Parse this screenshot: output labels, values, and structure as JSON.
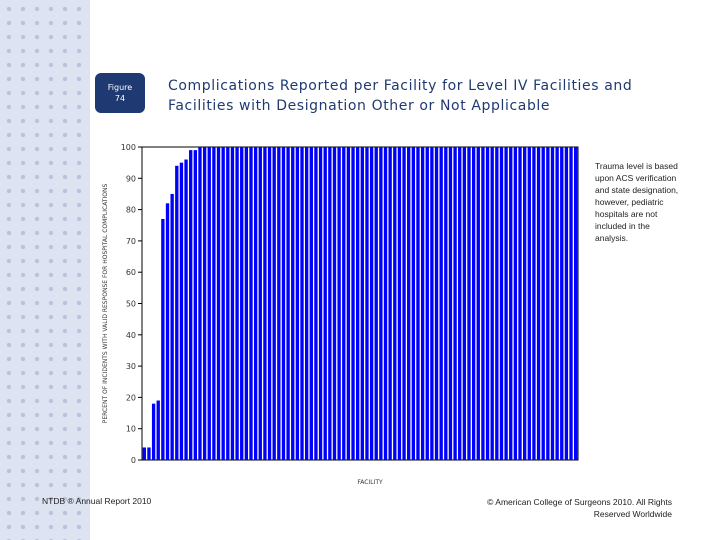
{
  "figure": {
    "label": "Figure",
    "number": "74"
  },
  "title": "Complications Reported per Facility for Level IV Facilities and Facilities with Designation Other or Not Applicable",
  "note": "Trauma level is based upon ACS verification and state designation, however, pediatric hospitals are not included in the analysis.",
  "footer": {
    "left": "NTDB ® Annual Report 2010",
    "right": "© American College of Surgeons 2010. All Rights Reserved Worldwide"
  },
  "colors": {
    "bar": "#0000ff",
    "sidebar": "#dde3f0",
    "badge": "#1f3a72",
    "title": "#1f3a72"
  },
  "chart_data": {
    "type": "bar",
    "xlabel": "FACILITY",
    "ylabel": "PERCENT OF INCIDENTS WITH VALID RESPONSE FOR HOSPITAL COMPLICATIONS",
    "ylim": [
      0,
      100
    ],
    "yticks": [
      0,
      10,
      20,
      30,
      40,
      50,
      60,
      70,
      80,
      90,
      100
    ],
    "grid": false,
    "values": [
      4,
      4,
      18,
      19,
      77,
      82,
      85,
      94,
      95,
      96,
      99,
      99,
      100,
      100,
      100,
      100,
      100,
      100,
      100,
      100,
      100,
      100,
      100,
      100,
      100,
      100,
      100,
      100,
      100,
      100,
      100,
      100,
      100,
      100,
      100,
      100,
      100,
      100,
      100,
      100,
      100,
      100,
      100,
      100,
      100,
      100,
      100,
      100,
      100,
      100,
      100,
      100,
      100,
      100,
      100,
      100,
      100,
      100,
      100,
      100,
      100,
      100,
      100,
      100,
      100,
      100,
      100,
      100,
      100,
      100,
      100,
      100,
      100,
      100,
      100,
      100,
      100,
      100,
      100,
      100,
      100,
      100,
      100,
      100,
      100,
      100,
      100,
      100,
      100,
      100,
      100,
      100,
      100,
      100
    ]
  }
}
